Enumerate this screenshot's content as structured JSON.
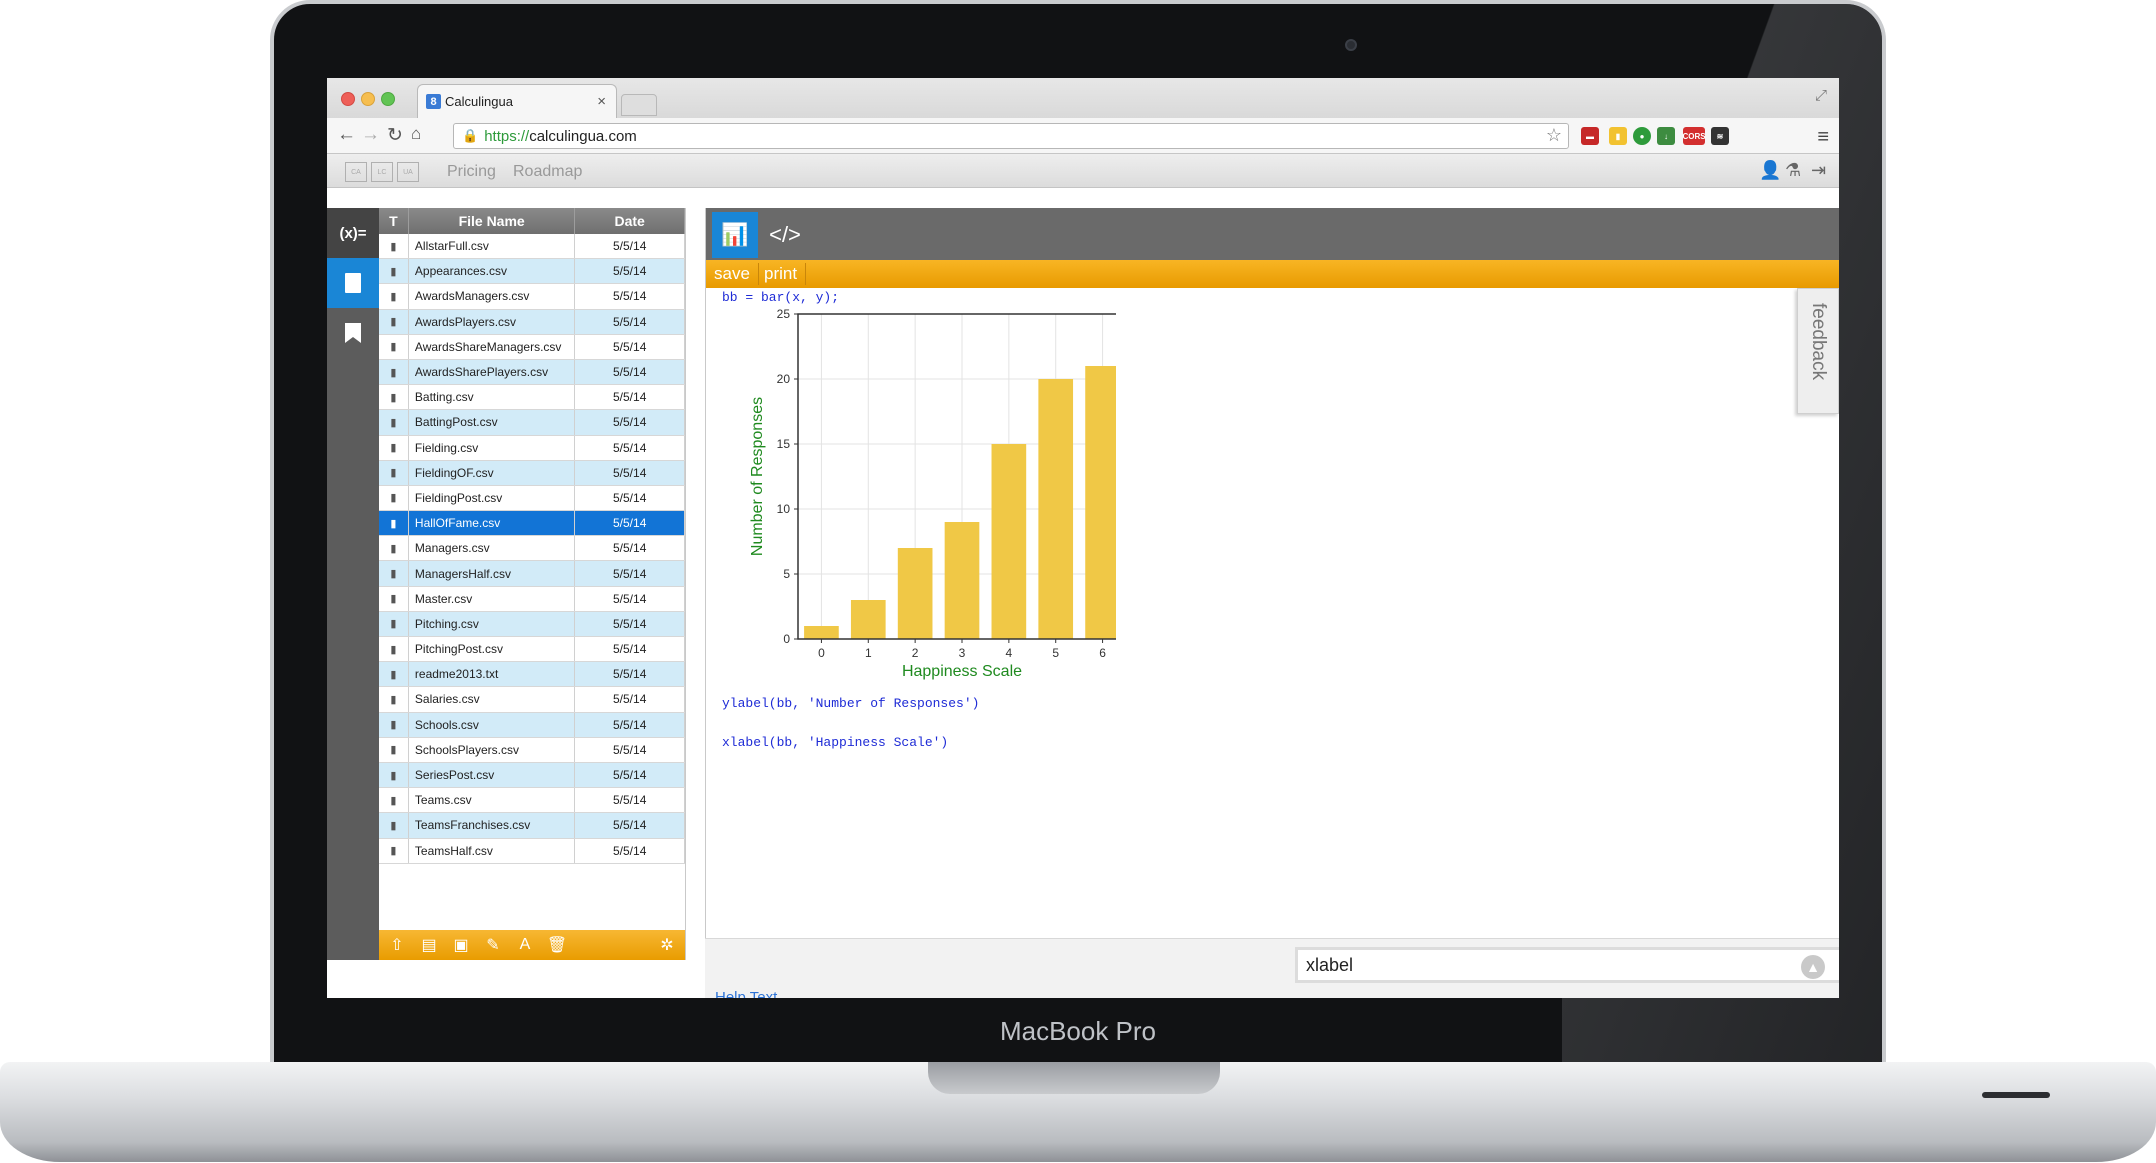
{
  "device": {
    "brand": "MacBook Pro"
  },
  "browser": {
    "tab_title": "Calculingua",
    "tab_favicon": "8",
    "url_scheme": "https://",
    "url_host": "calculingua.com",
    "extension_label": "CORS"
  },
  "app_nav": {
    "links": [
      "Pricing",
      "Roadmap"
    ]
  },
  "rail": {
    "functions_label": "(x)="
  },
  "file_list": {
    "columns": [
      "T",
      "File Name",
      "Date"
    ],
    "files": [
      {
        "name": "AllstarFull.csv",
        "date": "5/5/14"
      },
      {
        "name": "Appearances.csv",
        "date": "5/5/14"
      },
      {
        "name": "AwardsManagers.csv",
        "date": "5/5/14"
      },
      {
        "name": "AwardsPlayers.csv",
        "date": "5/5/14"
      },
      {
        "name": "AwardsShareManagers.csv",
        "date": "5/5/14"
      },
      {
        "name": "AwardsSharePlayers.csv",
        "date": "5/5/14"
      },
      {
        "name": "Batting.csv",
        "date": "5/5/14"
      },
      {
        "name": "BattingPost.csv",
        "date": "5/5/14"
      },
      {
        "name": "Fielding.csv",
        "date": "5/5/14"
      },
      {
        "name": "FieldingOF.csv",
        "date": "5/5/14"
      },
      {
        "name": "FieldingPost.csv",
        "date": "5/5/14"
      },
      {
        "name": "HallOfFame.csv",
        "date": "5/5/14"
      },
      {
        "name": "Managers.csv",
        "date": "5/5/14"
      },
      {
        "name": "ManagersHalf.csv",
        "date": "5/5/14"
      },
      {
        "name": "Master.csv",
        "date": "5/5/14"
      },
      {
        "name": "Pitching.csv",
        "date": "5/5/14"
      },
      {
        "name": "PitchingPost.csv",
        "date": "5/5/14"
      },
      {
        "name": "readme2013.txt",
        "date": "5/5/14"
      },
      {
        "name": "Salaries.csv",
        "date": "5/5/14"
      },
      {
        "name": "Schools.csv",
        "date": "5/5/14"
      },
      {
        "name": "SchoolsPlayers.csv",
        "date": "5/5/14"
      },
      {
        "name": "SeriesPost.csv",
        "date": "5/5/14"
      },
      {
        "name": "Teams.csv",
        "date": "5/5/14"
      },
      {
        "name": "TeamsFranchises.csv",
        "date": "5/5/14"
      },
      {
        "name": "TeamsHalf.csv",
        "date": "5/5/14"
      }
    ],
    "selected_index": 11
  },
  "workspace": {
    "actions": [
      "save",
      "print"
    ],
    "code_lines": [
      "bb = bar(x, y);",
      "ylabel(bb, 'Number of Responses')",
      "xlabel(bb, 'Happiness Scale')"
    ],
    "feedback_label": "feedback",
    "command_input_value": "xlabel",
    "help_link": "Help Text"
  },
  "colors": {
    "accent_orange": "#f0a500",
    "bar_fill": "#f0c846",
    "axis_label_green": "#1f8a1f",
    "selection_blue": "#1274d6",
    "alt_row": "#d2ebf8"
  },
  "chart_data": {
    "type": "bar",
    "categories": [
      "0",
      "1",
      "2",
      "3",
      "4",
      "5",
      "6"
    ],
    "values": [
      1,
      3,
      7,
      9,
      15,
      20,
      21
    ],
    "xlabel": "Happiness Scale",
    "ylabel": "Number of Responses",
    "ylim": [
      0,
      25
    ],
    "yticks": [
      0,
      5,
      10,
      15,
      20,
      25
    ],
    "grid": true
  }
}
